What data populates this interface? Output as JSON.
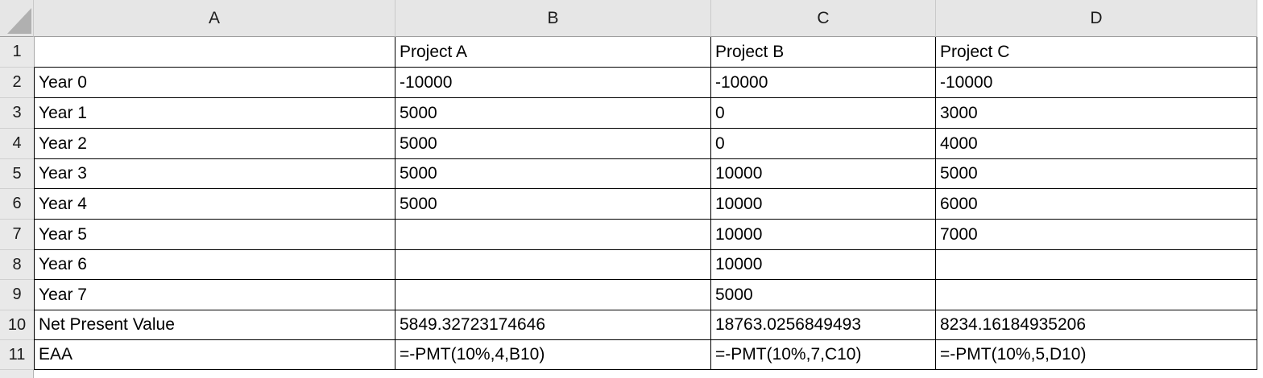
{
  "sheet": {
    "name": "spreadsheet-grid",
    "corner_label": "",
    "column_headers": [
      "A",
      "B",
      "C",
      "D"
    ],
    "row_numbers": [
      "1",
      "2",
      "3",
      "4",
      "5",
      "6",
      "7",
      "8",
      "9",
      "10",
      "11"
    ],
    "rows": [
      {
        "A": "",
        "B": "Project A",
        "C": "Project B",
        "D": "Project C"
      },
      {
        "A": "Year 0",
        "B": "-10000",
        "C": "-10000",
        "D": "-10000"
      },
      {
        "A": "Year 1",
        "B": "5000",
        "C": "0",
        "D": "3000"
      },
      {
        "A": "Year 2",
        "B": "5000",
        "C": "0",
        "D": "4000"
      },
      {
        "A": "Year 3",
        "B": "5000",
        "C": "10000",
        "D": "5000"
      },
      {
        "A": "Year 4",
        "B": "5000",
        "C": "10000",
        "D": "6000"
      },
      {
        "A": "Year 5",
        "B": "",
        "C": "10000",
        "D": "7000"
      },
      {
        "A": "Year 6",
        "B": "",
        "C": "10000",
        "D": ""
      },
      {
        "A": "Year 7",
        "B": "",
        "C": "5000",
        "D": ""
      },
      {
        "A": "Net Present Value",
        "B": "5849.32723174646",
        "C": "18763.0256849493",
        "D": "8234.16184935206"
      },
      {
        "A": "EAA",
        "B": "=-PMT(10%,4,B10)",
        "C": "=-PMT(10%,7,C10)",
        "D": "=-PMT(10%,5,D10)"
      }
    ],
    "colors": {
      "header_bg": "#e6e6e6",
      "gutter_bg": "#e9e9e9",
      "cell_border": "#000000",
      "header_bottom_border": "#9d9d9d",
      "header_separator": "#c9c9c9",
      "gutter_separator": "#cfcfcf",
      "select_all_triangle": "#b0b0b0",
      "text": "#000000"
    }
  }
}
